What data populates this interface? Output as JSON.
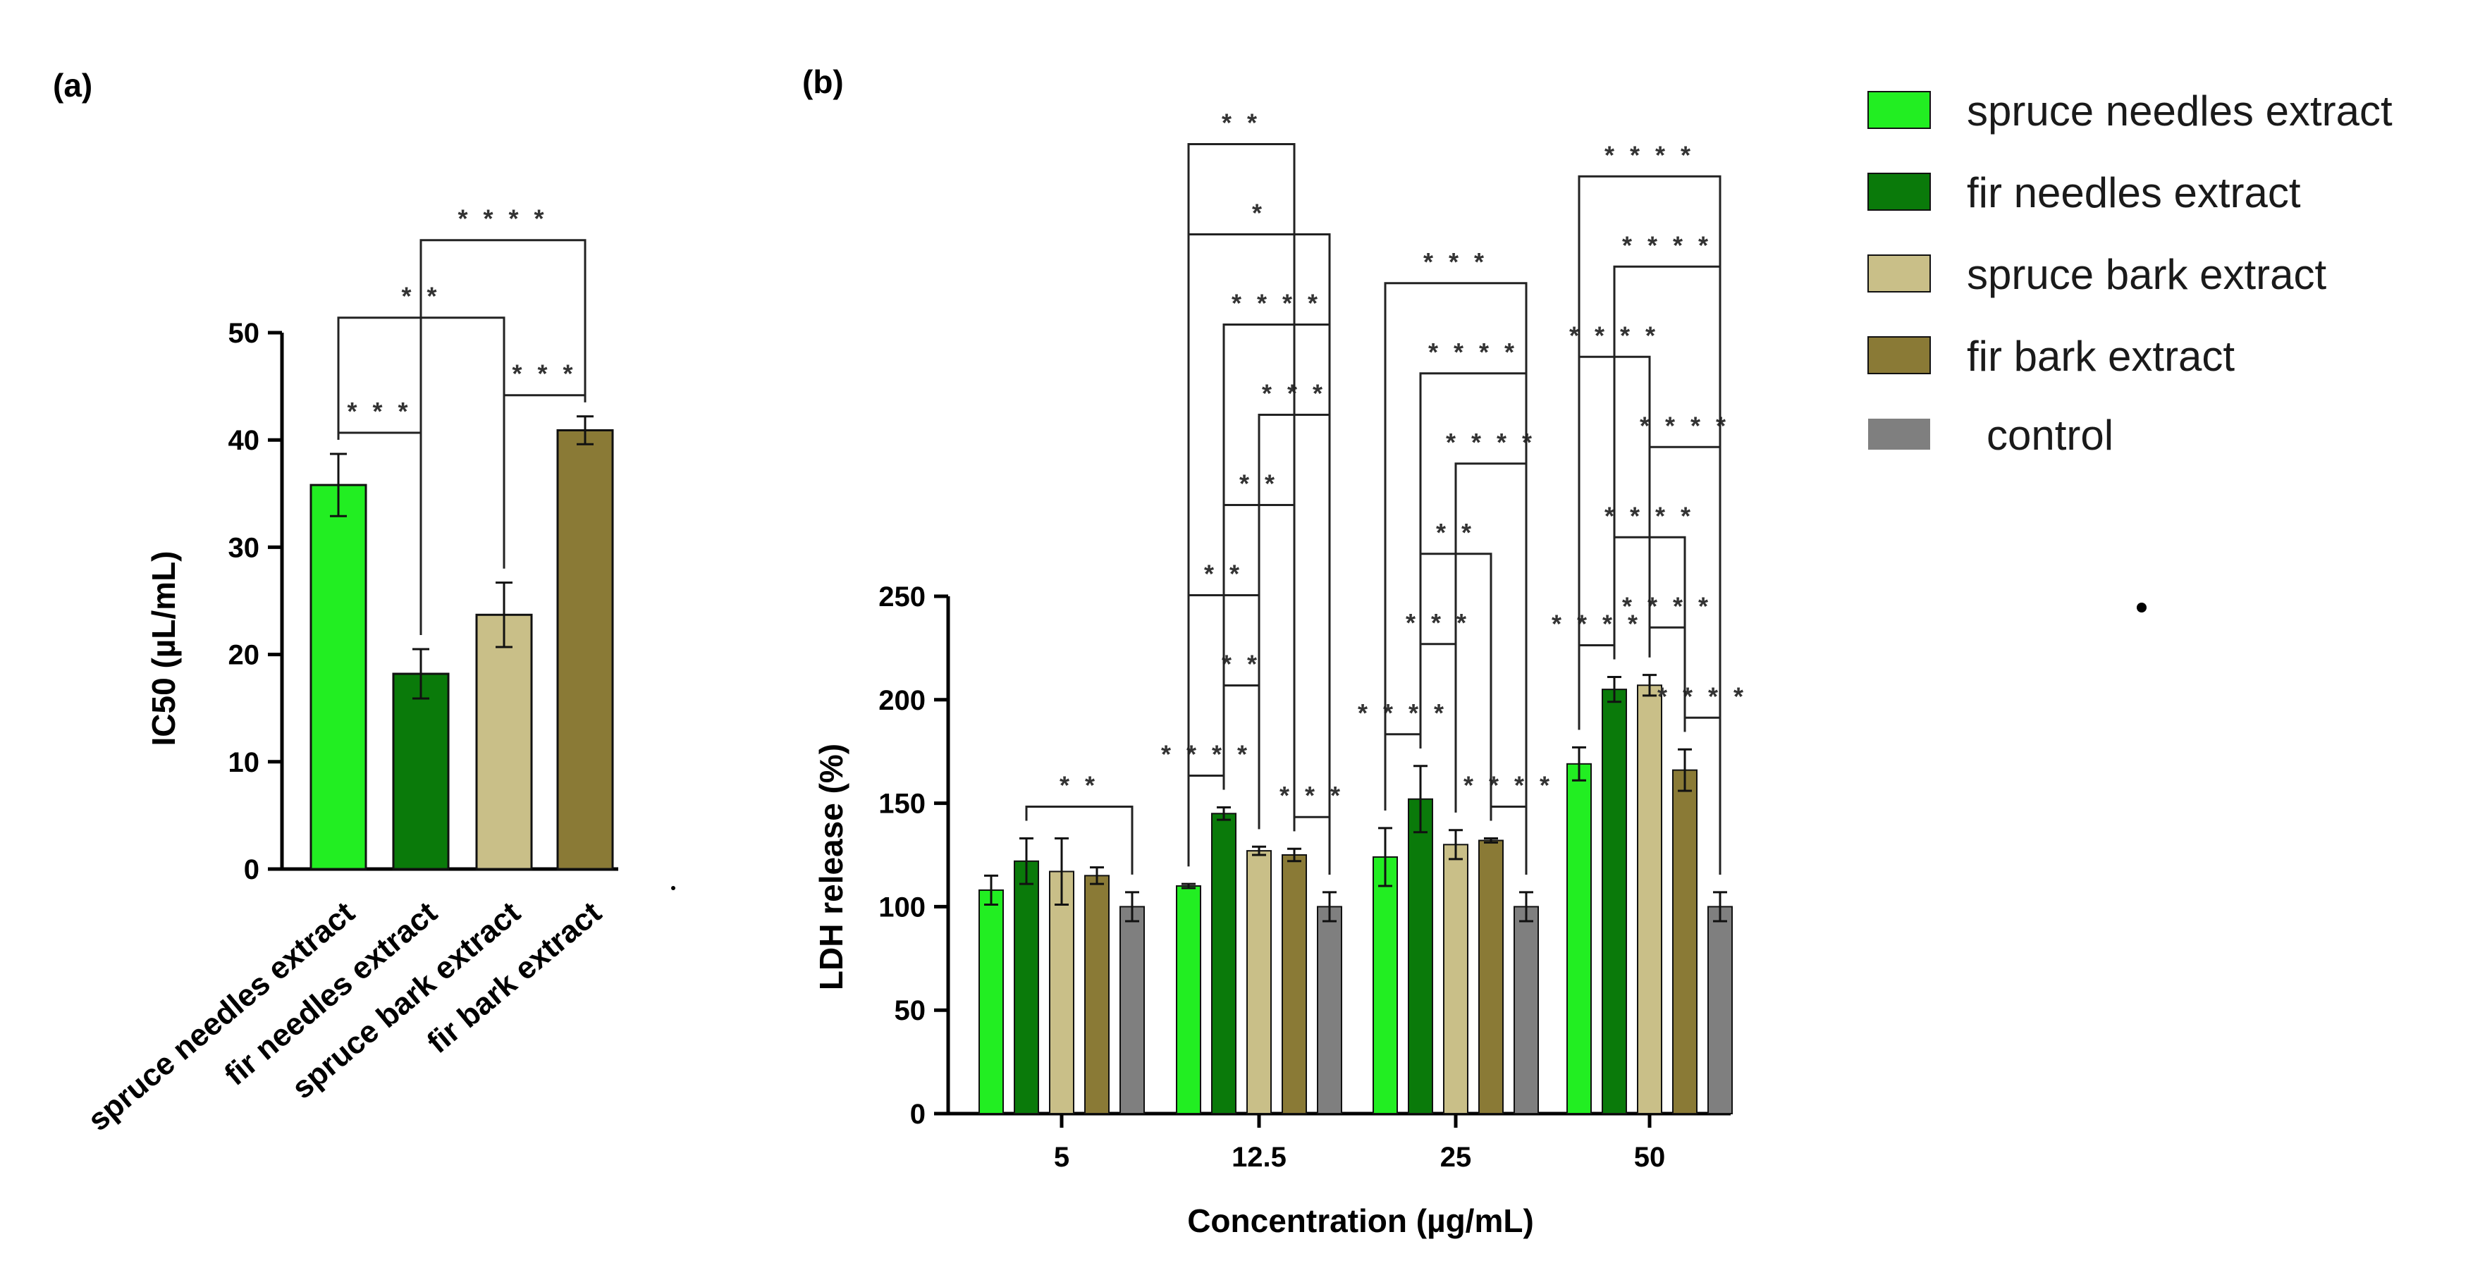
{
  "chart_data": [
    {
      "panel": "(a)",
      "type": "bar",
      "categories": [
        "spruce needles extract",
        "fir needles extract",
        "spruce bark extract",
        "fir bark extract"
      ],
      "values": [
        35.8,
        18.2,
        23.7,
        40.9
      ],
      "errors": [
        2.9,
        2.3,
        3.0,
        1.3
      ],
      "colors": [
        "#22ee22",
        "#0a7a0a",
        "#c9bf88",
        "#8a7a36"
      ],
      "title": "",
      "xlabel": "",
      "ylabel": "IC50 (µL/mL)",
      "ylim": [
        0,
        50
      ],
      "yticks": [
        "0",
        "10",
        "20",
        "30",
        "40",
        "50"
      ],
      "significance": [
        {
          "from": 0,
          "to": 1,
          "label": "***"
        },
        {
          "from": 2,
          "to": 3,
          "label": "***"
        },
        {
          "from": 0,
          "to": 2,
          "label": "**"
        },
        {
          "from": 1,
          "to": 3,
          "label": "****"
        }
      ]
    },
    {
      "panel": "(b)",
      "type": "bar",
      "categories": [
        "5",
        "12.5",
        "25",
        "50"
      ],
      "series": [
        {
          "name": "spruce needles extract",
          "color": "#22ee22",
          "values": [
            108,
            110,
            124,
            169
          ],
          "errors": [
            7,
            1,
            14,
            8
          ]
        },
        {
          "name": "fir needles extract",
          "color": "#0a7a0a",
          "values": [
            122,
            145,
            152,
            205
          ],
          "errors": [
            11,
            3,
            16,
            6
          ]
        },
        {
          "name": "spruce bark extract",
          "color": "#c9bf88",
          "values": [
            117,
            127,
            130,
            207
          ],
          "errors": [
            16,
            2,
            7,
            5
          ]
        },
        {
          "name": "fir bark extract",
          "color": "#8a7a36",
          "values": [
            115,
            125,
            132,
            166
          ],
          "errors": [
            4,
            3,
            1,
            10
          ]
        },
        {
          "name": "control",
          "color": "#7f7f7f",
          "values": [
            100,
            100,
            100,
            100
          ],
          "errors": [
            7,
            7,
            7,
            7
          ]
        }
      ],
      "title": "",
      "xlabel": "Concentration (µg/mL)",
      "ylabel": "LDH release  (%)",
      "ylim": [
        0,
        250
      ],
      "yticks": [
        "0",
        "50",
        "100",
        "150",
        "200",
        "250"
      ],
      "significance": [
        {
          "group": 0,
          "from": 1,
          "to": 4,
          "label": "**"
        },
        {
          "group": 1,
          "from": 0,
          "to": 1,
          "label": "****"
        },
        {
          "group": 1,
          "from": 1,
          "to": 2,
          "label": "**"
        },
        {
          "group": 1,
          "from": 3,
          "to": 4,
          "label": "***"
        },
        {
          "group": 1,
          "from": 0,
          "to": 2,
          "label": "**"
        },
        {
          "group": 1,
          "from": 1,
          "to": 3,
          "label": "**"
        },
        {
          "group": 1,
          "from": 2,
          "to": 4,
          "label": "***"
        },
        {
          "group": 1,
          "from": 1,
          "to": 4,
          "label": "****"
        },
        {
          "group": 1,
          "from": 0,
          "to": 4,
          "label": "*"
        },
        {
          "group": 1,
          "from": 0,
          "to": 3,
          "label": "**"
        },
        {
          "group": 2,
          "from": 0,
          "to": 1,
          "label": "****"
        },
        {
          "group": 2,
          "from": 3,
          "to": 4,
          "label": "****"
        },
        {
          "group": 2,
          "from": 1,
          "to": 2,
          "label": "***"
        },
        {
          "group": 2,
          "from": 1,
          "to": 3,
          "label": "**"
        },
        {
          "group": 2,
          "from": 2,
          "to": 4,
          "label": "****"
        },
        {
          "group": 2,
          "from": 1,
          "to": 4,
          "label": "****"
        },
        {
          "group": 2,
          "from": 0,
          "to": 4,
          "label": "***"
        },
        {
          "group": 3,
          "from": 0,
          "to": 1,
          "label": "****"
        },
        {
          "group": 3,
          "from": 3,
          "to": 4,
          "label": "****"
        },
        {
          "group": 3,
          "from": 2,
          "to": 3,
          "label": "****"
        },
        {
          "group": 3,
          "from": 1,
          "to": 3,
          "label": "****"
        },
        {
          "group": 3,
          "from": 2,
          "to": 4,
          "label": "****"
        },
        {
          "group": 3,
          "from": 0,
          "to": 2,
          "label": "****"
        },
        {
          "group": 3,
          "from": 1,
          "to": 4,
          "label": "****"
        },
        {
          "group": 3,
          "from": 0,
          "to": 4,
          "label": "****"
        }
      ]
    }
  ],
  "legend": [
    {
      "label": "spruce needles extract",
      "color": "#22ee22"
    },
    {
      "label": "fir needles extract",
      "color": "#0a7a0a"
    },
    {
      "label": "spruce bark extract",
      "color": "#c9bf88"
    },
    {
      "label": "fir bark extract",
      "color": "#8a7a36"
    },
    {
      "label": "control",
      "color": "#7f7f7f"
    }
  ]
}
